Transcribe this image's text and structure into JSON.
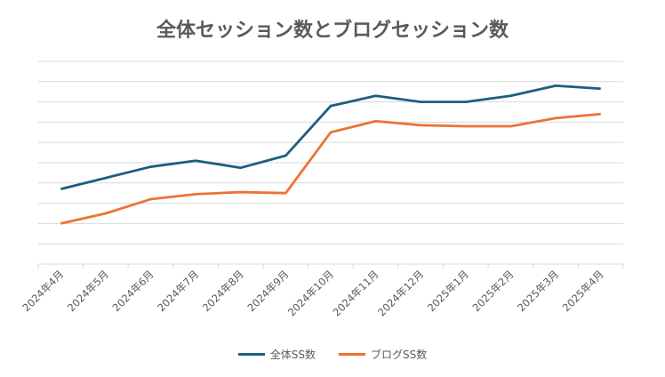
{
  "chart_data": {
    "type": "line",
    "title": "全体セッション数とブログセッション数",
    "xlabel": "",
    "ylabel": "",
    "ylim": [
      0,
      10
    ],
    "y_tick_count": 10,
    "y_tick_labels_visible": false,
    "grid": true,
    "legend_position": "bottom",
    "categories": [
      "2024年4月",
      "2024年5月",
      "2024年6月",
      "2024年7月",
      "2024年8月",
      "2024年9月",
      "2024年10月",
      "2024年11月",
      "2024年12月",
      "2025年1月",
      "2025年2月",
      "2025年3月",
      "2025年4月"
    ],
    "series": [
      {
        "name": "全体SS数",
        "color": "#1b5f80",
        "values": [
          3.7,
          4.25,
          4.8,
          5.1,
          4.75,
          5.35,
          7.8,
          8.3,
          8.0,
          8.0,
          8.3,
          8.8,
          8.65
        ]
      },
      {
        "name": "ブログSS数",
        "color": "#ed7331",
        "values": [
          2.0,
          2.5,
          3.2,
          3.45,
          3.55,
          3.5,
          6.5,
          7.05,
          6.85,
          6.8,
          6.8,
          7.2,
          7.4
        ]
      }
    ]
  }
}
